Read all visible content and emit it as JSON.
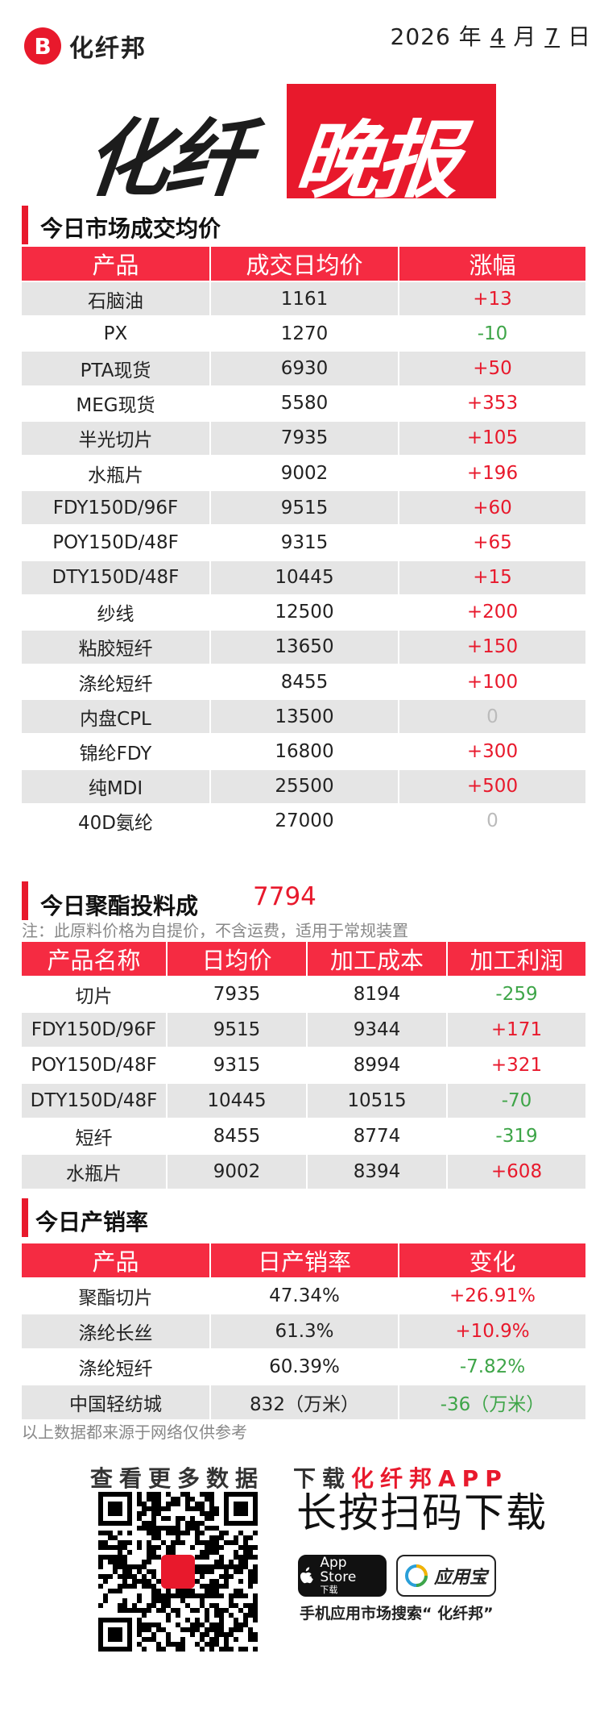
{
  "brand": {
    "name": "化纤邦",
    "logo_letter": "B"
  },
  "date": {
    "year": "2026",
    "y_unit": "年",
    "month": "4",
    "m_unit": "月",
    "day": "7",
    "d_unit": "日"
  },
  "masthead": {
    "left": "化纤",
    "right": "晚报"
  },
  "section1": {
    "title": "今日市场成交均价",
    "headers": [
      "产品",
      "成交日均价",
      "涨幅"
    ],
    "rows": [
      {
        "product": "石脑油",
        "price": "1161",
        "change": "+13",
        "dir": "up"
      },
      {
        "product": "PX",
        "price": "1270",
        "change": "-10",
        "dir": "down"
      },
      {
        "product": "PTA现货",
        "price": "6930",
        "change": "+50",
        "dir": "up"
      },
      {
        "product": "MEG现货",
        "price": "5580",
        "change": "+353",
        "dir": "up"
      },
      {
        "product": "半光切片",
        "price": "7935",
        "change": "+105",
        "dir": "up"
      },
      {
        "product": "水瓶片",
        "price": "9002",
        "change": "+196",
        "dir": "up"
      },
      {
        "product": "FDY150D/96F",
        "price": "9515",
        "change": "+60",
        "dir": "up"
      },
      {
        "product": "POY150D/48F",
        "price": "9315",
        "change": "+65",
        "dir": "up"
      },
      {
        "product": "DTY150D/48F",
        "price": "10445",
        "change": "+15",
        "dir": "up"
      },
      {
        "product": "纱线",
        "price": "12500",
        "change": "+200",
        "dir": "up"
      },
      {
        "product": "粘胶短纤",
        "price": "13650",
        "change": "+150",
        "dir": "up"
      },
      {
        "product": "涤纶短纤",
        "price": "8455",
        "change": "+100",
        "dir": "up"
      },
      {
        "product": "内盘CPL",
        "price": "13500",
        "change": "0",
        "dir": "zero"
      },
      {
        "product": "锦纶FDY",
        "price": "16800",
        "change": "+300",
        "dir": "up"
      },
      {
        "product": "纯MDI",
        "price": "25500",
        "change": "+500",
        "dir": "up"
      },
      {
        "product": "40D氨纶",
        "price": "27000",
        "change": "0",
        "dir": "zero"
      }
    ]
  },
  "section2": {
    "title": "今日聚酯投料成",
    "value": "7794",
    "note": "注：此原料价格为自提价，不含运费，适用于常规装置",
    "headers": [
      "产品名称",
      "日均价",
      "加工成本",
      "加工利润"
    ],
    "rows": [
      {
        "product": "切片",
        "price": "7935",
        "cost": "8194",
        "profit": "-259",
        "dir": "down"
      },
      {
        "product": "FDY150D/96F",
        "price": "9515",
        "cost": "9344",
        "profit": "+171",
        "dir": "up"
      },
      {
        "product": "POY150D/48F",
        "price": "9315",
        "cost": "8994",
        "profit": "+321",
        "dir": "up"
      },
      {
        "product": "DTY150D/48F",
        "price": "10445",
        "cost": "10515",
        "profit": "-70",
        "dir": "down"
      },
      {
        "product": "短纤",
        "price": "8455",
        "cost": "8774",
        "profit": "-319",
        "dir": "down"
      },
      {
        "product": "水瓶片",
        "price": "9002",
        "cost": "8394",
        "profit": "+608",
        "dir": "up"
      }
    ]
  },
  "section3": {
    "title": "今日产销率",
    "headers": [
      "产品",
      "日产销率",
      "变化"
    ],
    "rows": [
      {
        "product": "聚酯切片",
        "rate": "47.34%",
        "change": "+26.91%",
        "dir": "up"
      },
      {
        "product": "涤纶长丝",
        "rate": "61.3%",
        "change": "+10.9%",
        "dir": "up"
      },
      {
        "product": "涤纶短纤",
        "rate": "60.39%",
        "change": "-7.82%",
        "dir": "down"
      },
      {
        "product": "中国轻纺城",
        "rate": "832（万米）",
        "change": "-36（万米）",
        "dir": "down"
      }
    ],
    "source_note": "以上数据都来源于网络仅供参考"
  },
  "footer": {
    "promo_prefix": "查看更多数据　下载",
    "promo_app": "化纤邦APP",
    "cta": "长按扫码下载",
    "appstore_label": "App Store",
    "appstore_sub": "下载",
    "yyb_label": "应用宝",
    "search_line": "手机应用市场搜索“ 化纤邦”"
  },
  "colors": {
    "accent": "#e8192c",
    "header_bg": "#f52b42",
    "up": "#e8192c",
    "down": "#3ea548",
    "zero": "#bbbbbb",
    "alt_row": "#e5e5e5"
  }
}
